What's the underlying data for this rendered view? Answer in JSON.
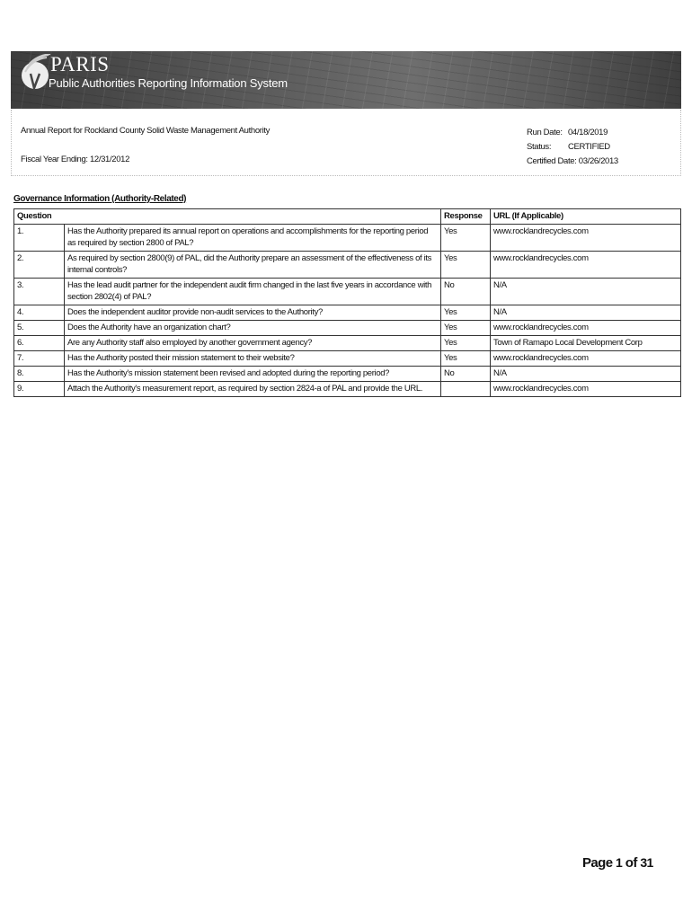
{
  "header": {
    "brand": "PARIS",
    "subtitle": "Public Authorities Reporting Information System"
  },
  "report": {
    "title": "Annual Report for Rockland County Solid Waste Management Authority",
    "fiscal_year": "Fiscal Year Ending: 12/31/2012",
    "run_date_label": "Run Date:",
    "run_date": "04/18/2019",
    "status_label": "Status:",
    "status": "CERTIFIED",
    "certified_label": "Certified Date:",
    "certified_date": "03/26/2013"
  },
  "section": {
    "title": "Governance Information (Authority-Related)",
    "columns": {
      "question": "Question",
      "response": "Response",
      "url": "URL (If Applicable)"
    },
    "rows": [
      {
        "num": "1.",
        "q": "Has the Authority prepared its annual report on operations and accomplishments for the reporting period as required by section 2800 of PAL?",
        "r": "Yes",
        "u": "www.rocklandrecycles.com"
      },
      {
        "num": "2.",
        "q": "As required by section 2800(9) of PAL, did the Authority prepare an assessment of the effectiveness of its internal controls?",
        "r": "Yes",
        "u": "www.rocklandrecycles.com"
      },
      {
        "num": "3.",
        "q": "Has the lead audit partner for the independent audit firm changed in the last five years in accordance with section 2802(4) of PAL?",
        "r": "No",
        "u": "N/A"
      },
      {
        "num": "4.",
        "q": "Does the independent auditor provide non-audit services to the Authority?",
        "r": "Yes",
        "u": "N/A"
      },
      {
        "num": "5.",
        "q": "Does the Authority have an organization chart?",
        "r": "Yes",
        "u": "www.rocklandrecycles.com"
      },
      {
        "num": "6.",
        "q": "Are any Authority staff also employed by another government agency?",
        "r": "Yes",
        "u": "Town of Ramapo Local Development Corp"
      },
      {
        "num": "7.",
        "q": "Has the Authority posted their mission statement to their website?",
        "r": "Yes",
        "u": "www.rocklandrecycles.com"
      },
      {
        "num": "8.",
        "q": "Has the Authority's mission statement been revised and adopted during the reporting period?",
        "r": "No",
        "u": "N/A"
      },
      {
        "num": "9.",
        "q": "Attach the Authority's measurement report, as required by section 2824-a of PAL and provide the URL.",
        "r": "",
        "u": "www.rocklandrecycles.com"
      }
    ]
  },
  "footer": {
    "page_word": "Page",
    "page": "1",
    "of_word": "of",
    "total": "31"
  }
}
